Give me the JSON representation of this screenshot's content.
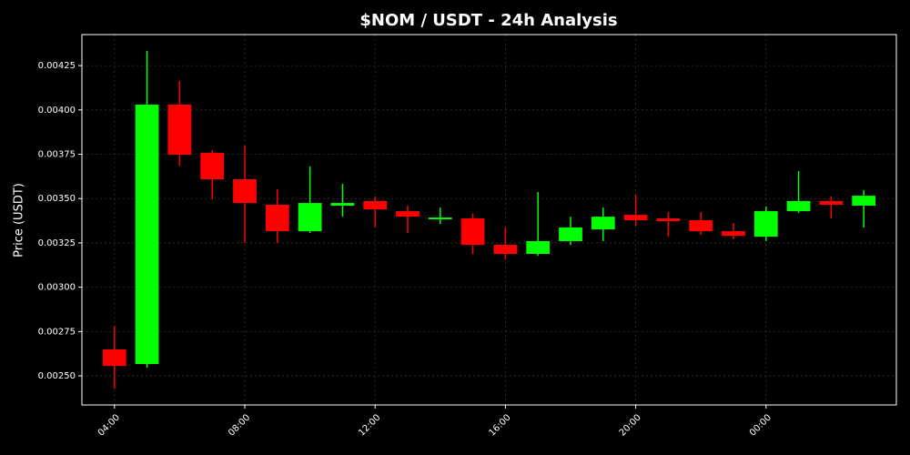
{
  "chart_data": {
    "type": "candlestick",
    "title": "$NOM / USDT - 24h Analysis",
    "y_label": "Price (USDT)",
    "categories": [
      "04:00",
      null,
      null,
      null,
      "08:00",
      null,
      null,
      null,
      "12:00",
      null,
      null,
      null,
      "16:00",
      null,
      null,
      null,
      "20:00",
      null,
      null,
      null,
      "00:00",
      null,
      null,
      null
    ],
    "open": [
      0.002649,
      0.002567,
      0.00403,
      0.003758,
      0.003609,
      0.003465,
      0.003316,
      0.00346,
      0.003486,
      0.003429,
      0.003383,
      0.003388,
      0.003239,
      0.003188,
      0.00326,
      0.003326,
      0.003408,
      0.003388,
      0.003378,
      0.003316,
      0.003285,
      0.003429,
      0.003486,
      0.00346
    ],
    "high": [
      0.002782,
      0.004333,
      0.004163,
      0.003773,
      0.003799,
      0.003552,
      0.003681,
      0.003583,
      0.003511,
      0.00346,
      0.003449,
      0.003414,
      0.003337,
      0.003537,
      0.003398,
      0.003449,
      0.003521,
      0.003424,
      0.003424,
      0.003362,
      0.003455,
      0.003655,
      0.003511,
      0.003547
    ],
    "low": [
      0.002428,
      0.002546,
      0.003686,
      0.003496,
      0.003249,
      0.003249,
      0.003306,
      0.003398,
      0.003337,
      0.003306,
      0.003357,
      0.003188,
      0.003157,
      0.003178,
      0.003239,
      0.00326,
      0.003347,
      0.003285,
      0.003296,
      0.00327,
      0.00326,
      0.003419,
      0.003388,
      0.003337
    ],
    "close": [
      0.002556,
      0.00403,
      0.003747,
      0.003609,
      0.003475,
      0.003316,
      0.003475,
      0.003475,
      0.003439,
      0.003398,
      0.003393,
      0.003239,
      0.003188,
      0.00326,
      0.003337,
      0.003398,
      0.003378,
      0.003373,
      0.003316,
      0.00329,
      0.003429,
      0.003486,
      0.003465,
      0.003516
    ],
    "up_color": "#00ff00",
    "down_color": "#ff0000",
    "ylim": [
      0.002336,
      0.004425
    ],
    "yticks": [
      {
        "value": 0.0025,
        "label": "0.00250"
      },
      0.00275,
      {
        "value": 0.003,
        "label": "0.00300"
      },
      0.00325,
      {
        "value": 0.0035,
        "label": "0.00350"
      },
      0.00375,
      {
        "value": 0.004,
        "label": "0.00400"
      },
      0.00425
    ],
    "grid": true
  }
}
